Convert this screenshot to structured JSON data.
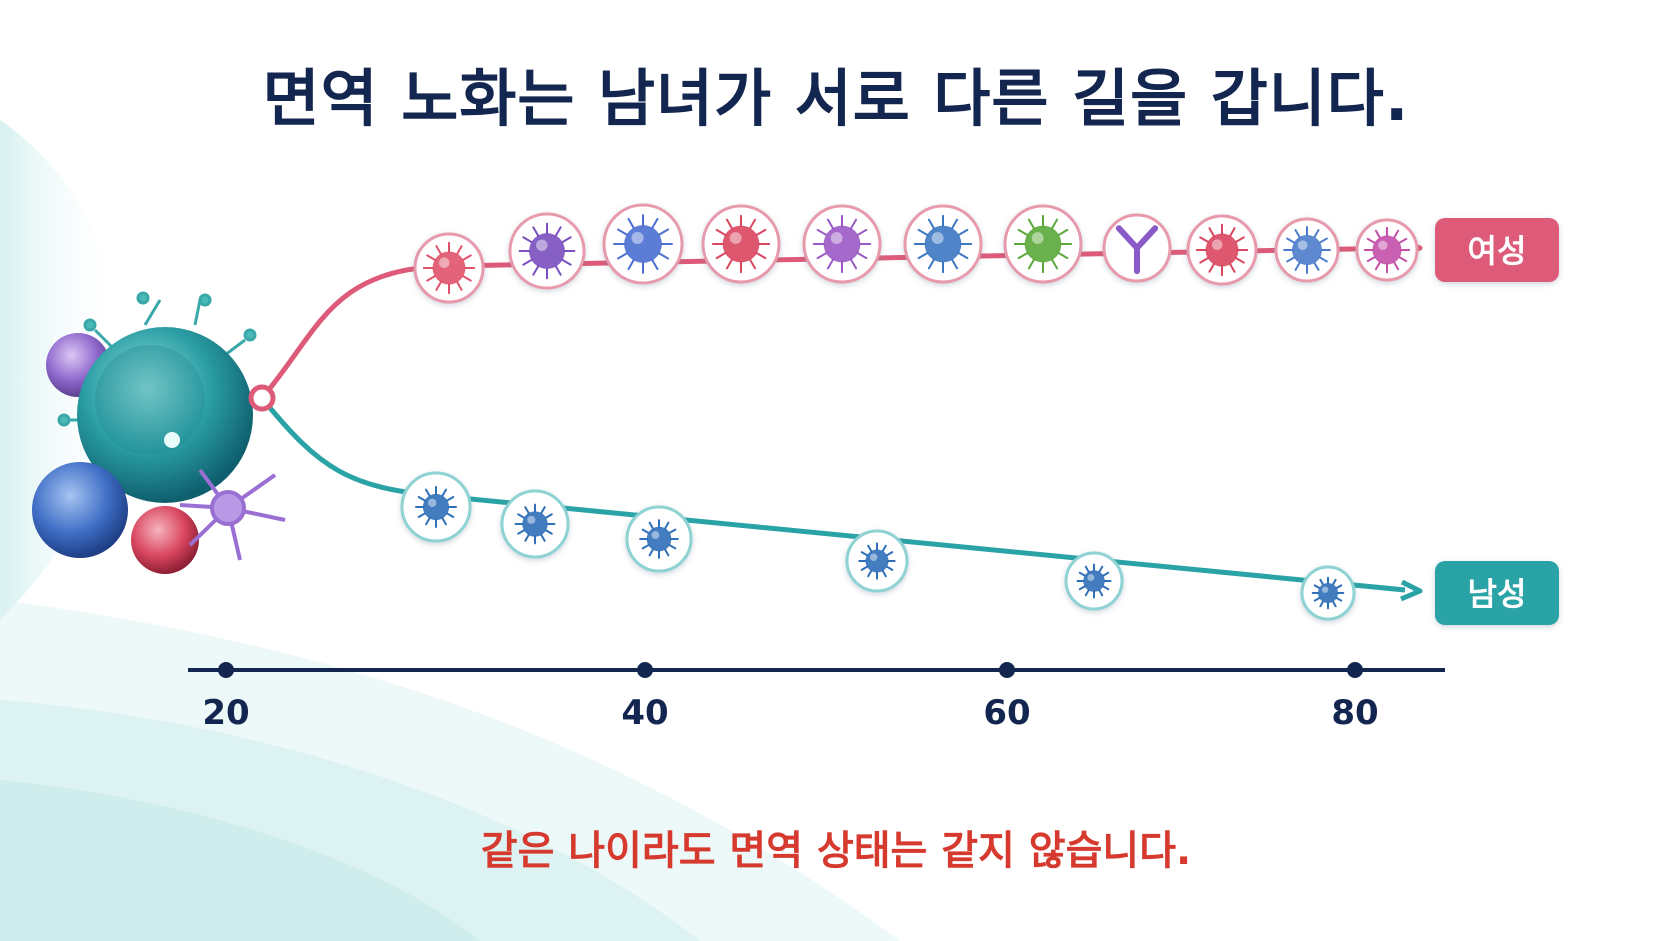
{
  "header": {
    "title": "면역 노화는 남녀가 서로 다른 길을 갑니다."
  },
  "footer": {
    "message": "같은 나이라도 면역 상태는 같지 않습니다."
  },
  "branches": {
    "female": {
      "label": "여성",
      "color": "#dd5a78",
      "cell_count": 11
    },
    "male": {
      "label": "남성",
      "color": "#2aa3a6",
      "cell_count": 6
    }
  },
  "age_axis": {
    "ticks": [
      "20",
      "40",
      "60",
      "80"
    ],
    "color": "#13264f"
  },
  "colors": {
    "title": "#13264f",
    "subtitle": "#d63a2e",
    "cells": [
      "#e0536b",
      "#7a4fbf",
      "#4a6fd0",
      "#d9465f",
      "#9a59c4",
      "#3c78c2",
      "#5aa83a",
      "#8a5ac8",
      "#d9465f",
      "#4d7ccc",
      "#c34fa8"
    ],
    "male_cell": "#2f6fb8"
  }
}
